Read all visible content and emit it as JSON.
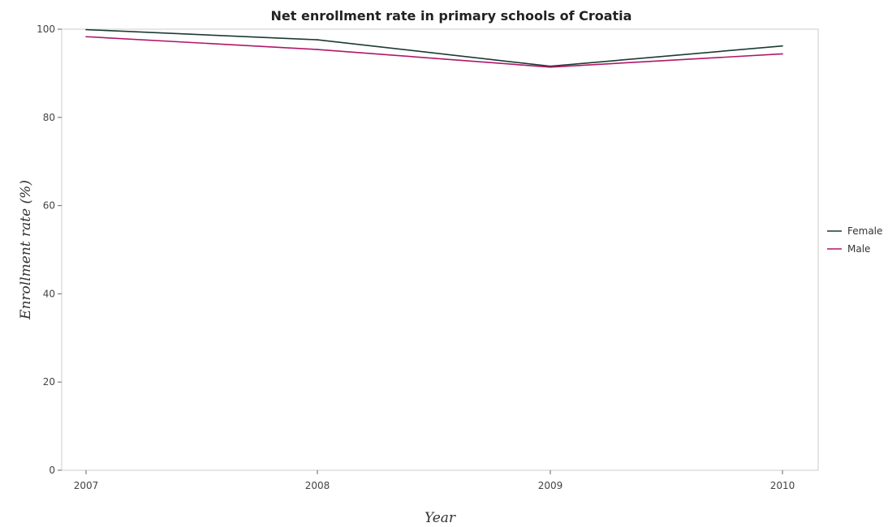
{
  "chart_data": {
    "type": "line",
    "title": "Net enrollment rate in primary schools of Croatia",
    "xlabel": "Year",
    "ylabel": "Enrollment rate (%)",
    "categories": [
      "2007",
      "2008",
      "2009",
      "2010"
    ],
    "ylim": [
      0,
      100
    ],
    "yticks": [
      "0",
      "20",
      "40",
      "60",
      "80",
      "100"
    ],
    "grid": false,
    "legend_position": "right",
    "series": [
      {
        "name": "Female",
        "color": "#1c3a34",
        "values": [
          99.9,
          97.6,
          91.6,
          96.2
        ]
      },
      {
        "name": "Male",
        "color": "#b0166a",
        "values": [
          98.3,
          95.4,
          91.4,
          94.4
        ]
      }
    ]
  }
}
